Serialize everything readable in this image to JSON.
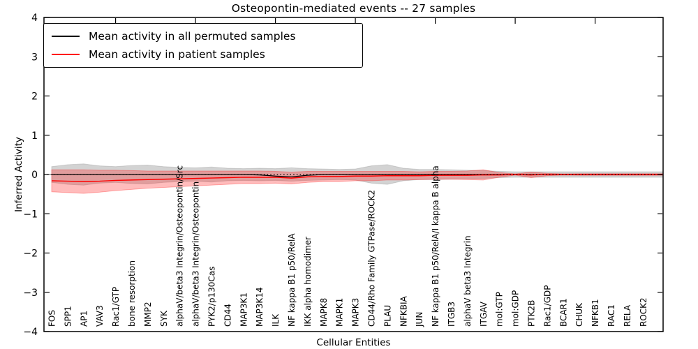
{
  "chart_data": {
    "type": "line",
    "title": "Osteopontin-mediated events -- 27 samples",
    "xlabel": "Cellular Entities",
    "ylabel": "Inferred Activity",
    "ylim": [
      -4,
      4
    ],
    "yticks": [
      -4,
      -3,
      -2,
      -1,
      0,
      1,
      2,
      3,
      4
    ],
    "grid": false,
    "legend_position": "upper left",
    "legend": [
      {
        "label": "Mean activity in all permuted samples",
        "color": "#000000"
      },
      {
        "label": "Mean activity in patient samples",
        "color": "#ff0000"
      }
    ],
    "categories": [
      "FOS",
      "SPP1",
      "AP1",
      "VAV3",
      "Rac1/GTP",
      "bone resorption",
      "MMP2",
      "SYK",
      "alphaV/beta3 Integrin/Osteopontin/Src",
      "alphaV/beta3 Integrin/Osteopontin",
      "PYK2/p130Cas",
      "CD44",
      "MAP3K1",
      "MAP3K14",
      "ILK",
      "NF kappa B1 p50/RelA",
      "IKK alpha homodimer",
      "MAPK8",
      "MAPK1",
      "MAPK3",
      "CD44/Rho Family GTPase/ROCK2",
      "PLAU",
      "NFKBIA",
      "JUN",
      "NF kappa B1 p50/RelA/I kappa B alpha",
      "ITGB3",
      "alphaV beta3 Integrin",
      "ITGAV",
      "mol:GTP",
      "mol:GDP",
      "PTK2B",
      "Rac1/GDP",
      "BCAR1",
      "CHUK",
      "NFKB1",
      "RAC1",
      "RELA",
      "ROCK2"
    ],
    "series": [
      {
        "name": "Mean activity in all permuted samples",
        "color": "#000000",
        "width": 1.3,
        "values": [
          0,
          0,
          0,
          0,
          0,
          0,
          0,
          0,
          0,
          0,
          0,
          0,
          0,
          -0.01,
          -0.04,
          -0.06,
          -0.02,
          0,
          0,
          0,
          0,
          0,
          0,
          0,
          0,
          0,
          0,
          0,
          0,
          0,
          0,
          0,
          0,
          0,
          0,
          0,
          0,
          0
        ]
      },
      {
        "name": "Mean activity in patient samples",
        "color": "#ff0000",
        "width": 1.5,
        "values": [
          -0.16,
          -0.17,
          -0.18,
          -0.17,
          -0.15,
          -0.14,
          -0.13,
          -0.12,
          -0.11,
          -0.1,
          -0.09,
          -0.08,
          -0.07,
          -0.07,
          -0.07,
          -0.09,
          -0.06,
          -0.05,
          -0.05,
          -0.04,
          -0.04,
          -0.03,
          -0.03,
          -0.03,
          -0.02,
          -0.02,
          -0.02,
          -0.01,
          -0.01,
          0,
          -0.01,
          0,
          0,
          0,
          0,
          0,
          0,
          0
        ]
      }
    ],
    "bands": [
      {
        "name": "permuted-samples-band",
        "color": "#8c8c8c",
        "opacity": 0.38,
        "upper": [
          0.2,
          0.25,
          0.27,
          0.22,
          0.2,
          0.23,
          0.24,
          0.2,
          0.18,
          0.17,
          0.19,
          0.16,
          0.15,
          0.16,
          0.15,
          0.17,
          0.15,
          0.14,
          0.13,
          0.14,
          0.22,
          0.25,
          0.16,
          0.13,
          0.13,
          0.12,
          0.11,
          0.1,
          0.08,
          0.07,
          0.07,
          0.07,
          0.07,
          0.07,
          0.07,
          0.07,
          0.07,
          0.07
        ],
        "lower": [
          -0.2,
          -0.25,
          -0.27,
          -0.22,
          -0.2,
          -0.23,
          -0.24,
          -0.2,
          -0.18,
          -0.17,
          -0.19,
          -0.16,
          -0.15,
          -0.16,
          -0.15,
          -0.17,
          -0.15,
          -0.14,
          -0.13,
          -0.14,
          -0.22,
          -0.25,
          -0.16,
          -0.13,
          -0.13,
          -0.12,
          -0.11,
          -0.1,
          -0.08,
          -0.07,
          -0.07,
          -0.07,
          -0.07,
          -0.07,
          -0.07,
          -0.07,
          -0.07,
          -0.07
        ]
      },
      {
        "name": "patient-samples-band",
        "color": "#ff2020",
        "opacity": 0.3,
        "upper": [
          0.12,
          0.12,
          0.12,
          0.11,
          0.11,
          0.1,
          0.09,
          0.09,
          0.09,
          0.09,
          0.09,
          0.09,
          0.09,
          0.09,
          0.08,
          0.06,
          0.08,
          0.08,
          0.08,
          0.08,
          0.08,
          0.08,
          0.08,
          0.07,
          0.08,
          0.08,
          0.09,
          0.12,
          0.05,
          0.015,
          0.06,
          0.03,
          0.015,
          0.02,
          0.02,
          0.02,
          0.02,
          0.02
        ],
        "lower": [
          -0.44,
          -0.46,
          -0.48,
          -0.45,
          -0.41,
          -0.38,
          -0.35,
          -0.33,
          -0.31,
          -0.29,
          -0.27,
          -0.25,
          -0.23,
          -0.23,
          -0.22,
          -0.24,
          -0.2,
          -0.18,
          -0.18,
          -0.16,
          -0.16,
          -0.14,
          -0.14,
          -0.13,
          -0.12,
          -0.12,
          -0.13,
          -0.14,
          -0.07,
          -0.015,
          -0.08,
          -0.03,
          -0.015,
          -0.02,
          -0.02,
          -0.02,
          -0.02,
          -0.02
        ]
      }
    ],
    "zero_line": {
      "value": 0,
      "style": "dotted",
      "color": "#000000"
    },
    "top_tick_indices": [
      4,
      9,
      14,
      19,
      24,
      29,
      34
    ]
  }
}
